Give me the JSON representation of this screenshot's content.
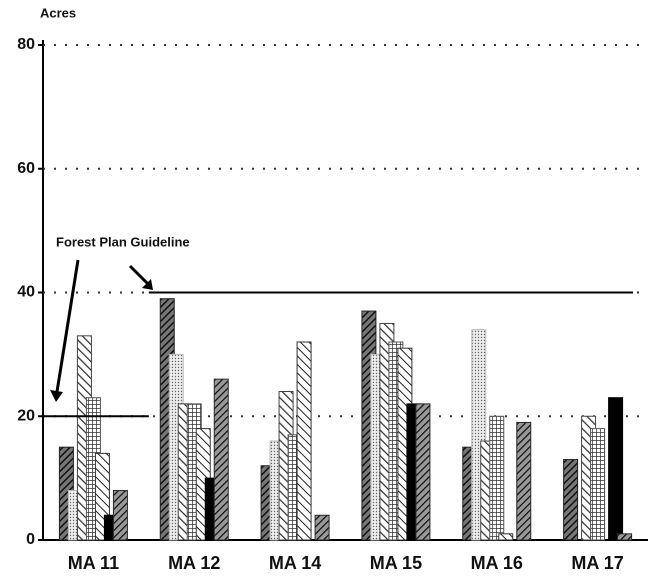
{
  "chart_data": {
    "type": "bar",
    "y_label": "Acres",
    "annotation": "Forest Plan Guideline",
    "categories": [
      "MA 11",
      "MA 12",
      "MA 14",
      "MA 15",
      "MA 16",
      "MA 17"
    ],
    "series": [
      {
        "color": "#222222",
        "values": [
          15,
          39,
          12,
          37,
          15,
          13
        ]
      },
      {
        "color": "#bbbbbb",
        "values": [
          8,
          30,
          16,
          30,
          34,
          0
        ]
      },
      {
        "color": "#444444",
        "values": [
          33,
          22,
          24,
          35,
          16,
          20
        ]
      },
      {
        "color": "#555555",
        "values": [
          23,
          22,
          17,
          32,
          20,
          18
        ]
      },
      {
        "color": "#333333",
        "values": [
          14,
          18,
          32,
          31,
          1,
          0
        ]
      },
      {
        "color": "#000000",
        "values": [
          4,
          10,
          0,
          22,
          0,
          23
        ]
      },
      {
        "color": "#2a2a2a",
        "values": [
          8,
          26,
          4,
          22,
          19,
          1
        ]
      }
    ],
    "guidelines": [
      20,
      40
    ],
    "ylim": [
      0,
      80
    ],
    "yticks": [
      0,
      20,
      40,
      60,
      80
    ],
    "grid": true
  }
}
